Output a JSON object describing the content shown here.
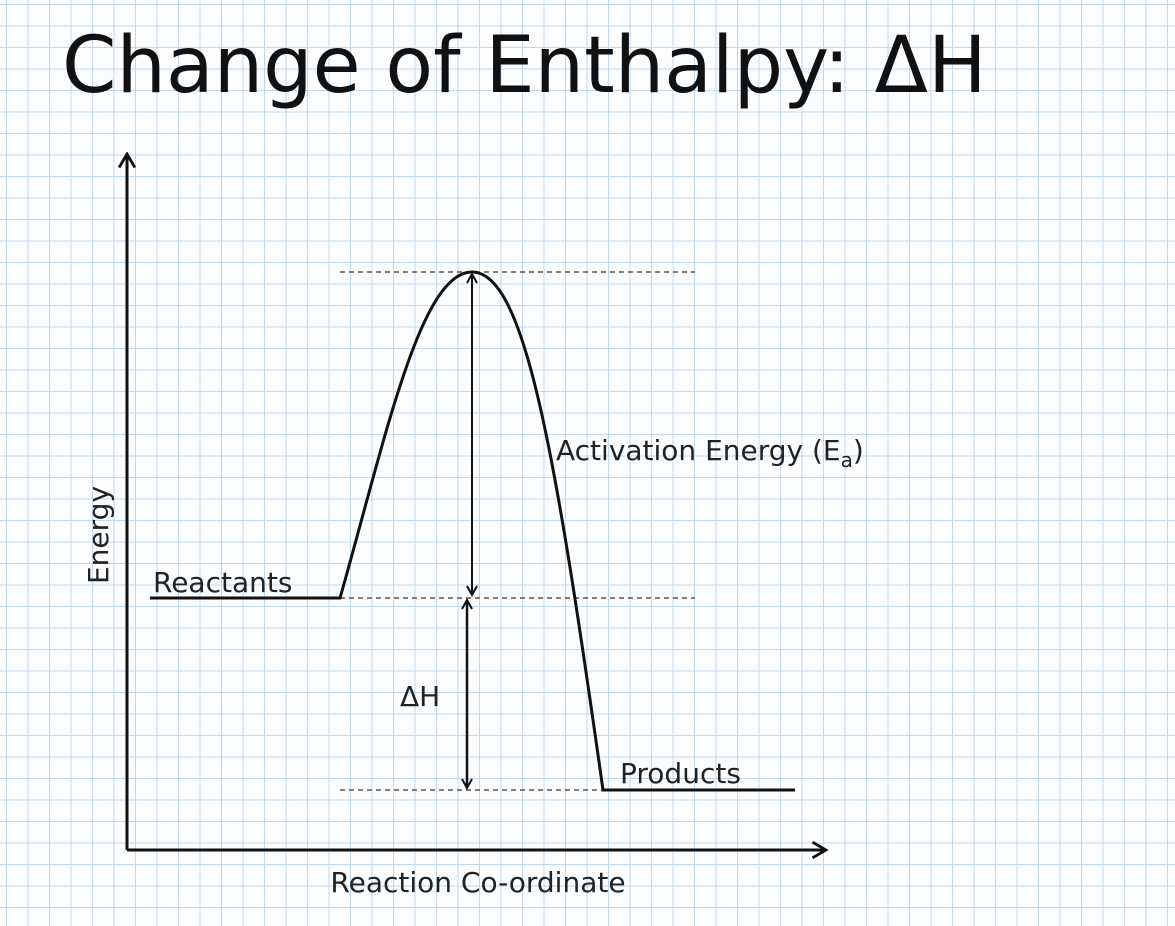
{
  "title": "Change of Enthalpy: ΔH",
  "axes": {
    "y_label": "Energy",
    "x_label": "Reaction Co-ordinate"
  },
  "labels": {
    "reactants": "Reactants",
    "products": "Products",
    "delta_h": "ΔH",
    "activation_energy": {
      "main": "Activation Energy (E",
      "subscript": "a",
      "close": ")"
    }
  }
}
